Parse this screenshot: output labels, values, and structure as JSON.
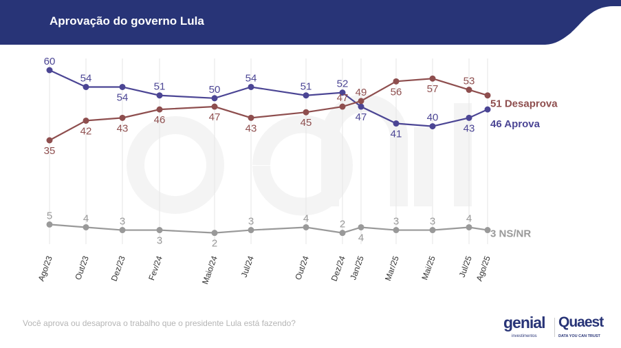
{
  "header": {
    "title": "Aprovação do governo Lula",
    "color": "#283477"
  },
  "footer": {
    "question": "Você aprova ou desaprova o trabalho que o presidente Lula está fazendo?",
    "logo_genial": "genial",
    "logo_genial_sub": "investimentos",
    "logo_quaest": "Quaest",
    "logo_quaest_sub": "DATA YOU CAN TRUST"
  },
  "watermark": {
    "text": "genial",
    "sub": "investimentos"
  },
  "chart_data": {
    "type": "line",
    "categories": [
      "Ago/23",
      "Out/23",
      "Dez/23",
      "Fev/24",
      "Maio/24",
      "Jul/24",
      "Out/24",
      "Dez/24",
      "Jan/25",
      "Mar/25",
      "Mai/25",
      "Jul/25",
      "Ago/25"
    ],
    "grid": "vertical",
    "series": [
      {
        "name": "Aprova",
        "color": "#4b4594",
        "values": [
          60,
          54,
          54,
          51,
          50,
          54,
          51,
          52,
          47,
          41,
          40,
          43,
          46
        ],
        "end_label": "46 Aprova"
      },
      {
        "name": "Desaprova",
        "color": "#8e4e4e",
        "values": [
          35,
          42,
          43,
          46,
          47,
          43,
          45,
          47,
          49,
          56,
          57,
          53,
          51
        ],
        "end_label": "51 Desaprova"
      },
      {
        "name": "NS/NR",
        "color": "#999999",
        "values": [
          5,
          4,
          3,
          3,
          2,
          3,
          4,
          2,
          4,
          3,
          3,
          4,
          3
        ],
        "end_label": "3 NS/NR"
      }
    ]
  }
}
